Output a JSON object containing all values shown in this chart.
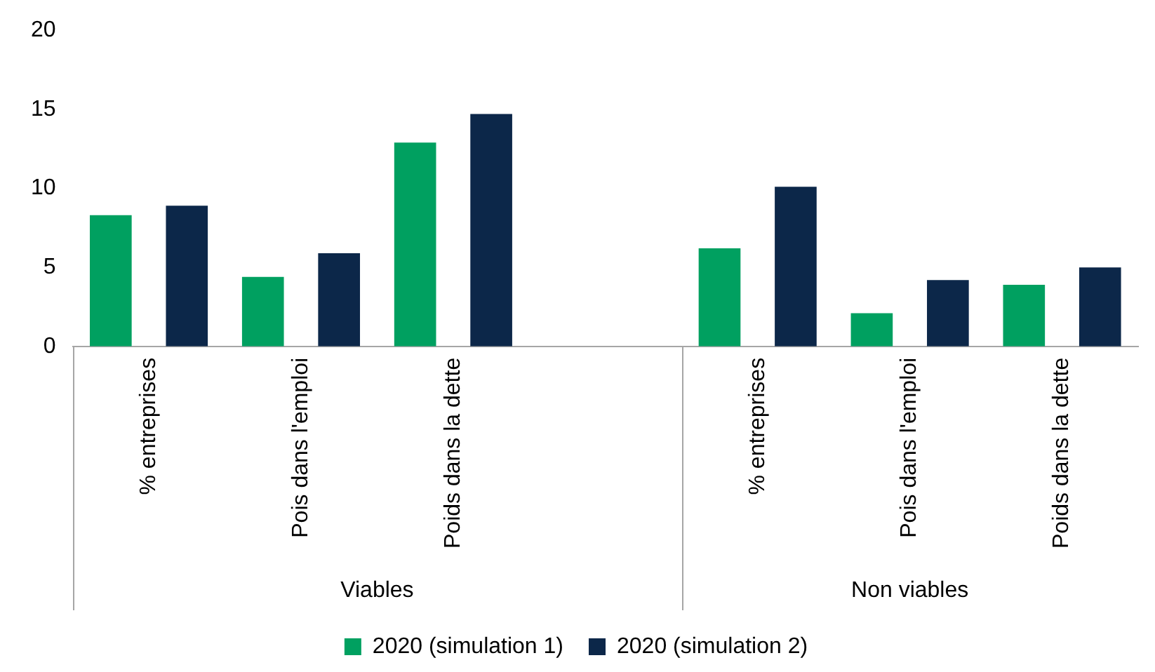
{
  "chart_data": {
    "type": "bar",
    "categories": [
      "% entreprises",
      "Pois dans l'emploi",
      "Poids dans la dette",
      null,
      "% entreprises",
      "Pois dans l'emploi",
      "Poids dans la dette"
    ],
    "series": [
      {
        "name": "2020 (simulation 1)",
        "color": "#00a060",
        "values": [
          8.3,
          4.4,
          12.9,
          null,
          6.2,
          2.1,
          3.9
        ]
      },
      {
        "name": "2020 (simulation 2)",
        "color": "#0c2749",
        "values": [
          8.9,
          5.9,
          14.7,
          null,
          10.1,
          4.2,
          5.0
        ]
      }
    ],
    "annotations": [
      "Viables",
      "Non viables"
    ],
    "ylim": [
      0,
      20
    ],
    "yticks": [
      0,
      5,
      10,
      15,
      20
    ],
    "grid": false,
    "legend": "bottom"
  }
}
